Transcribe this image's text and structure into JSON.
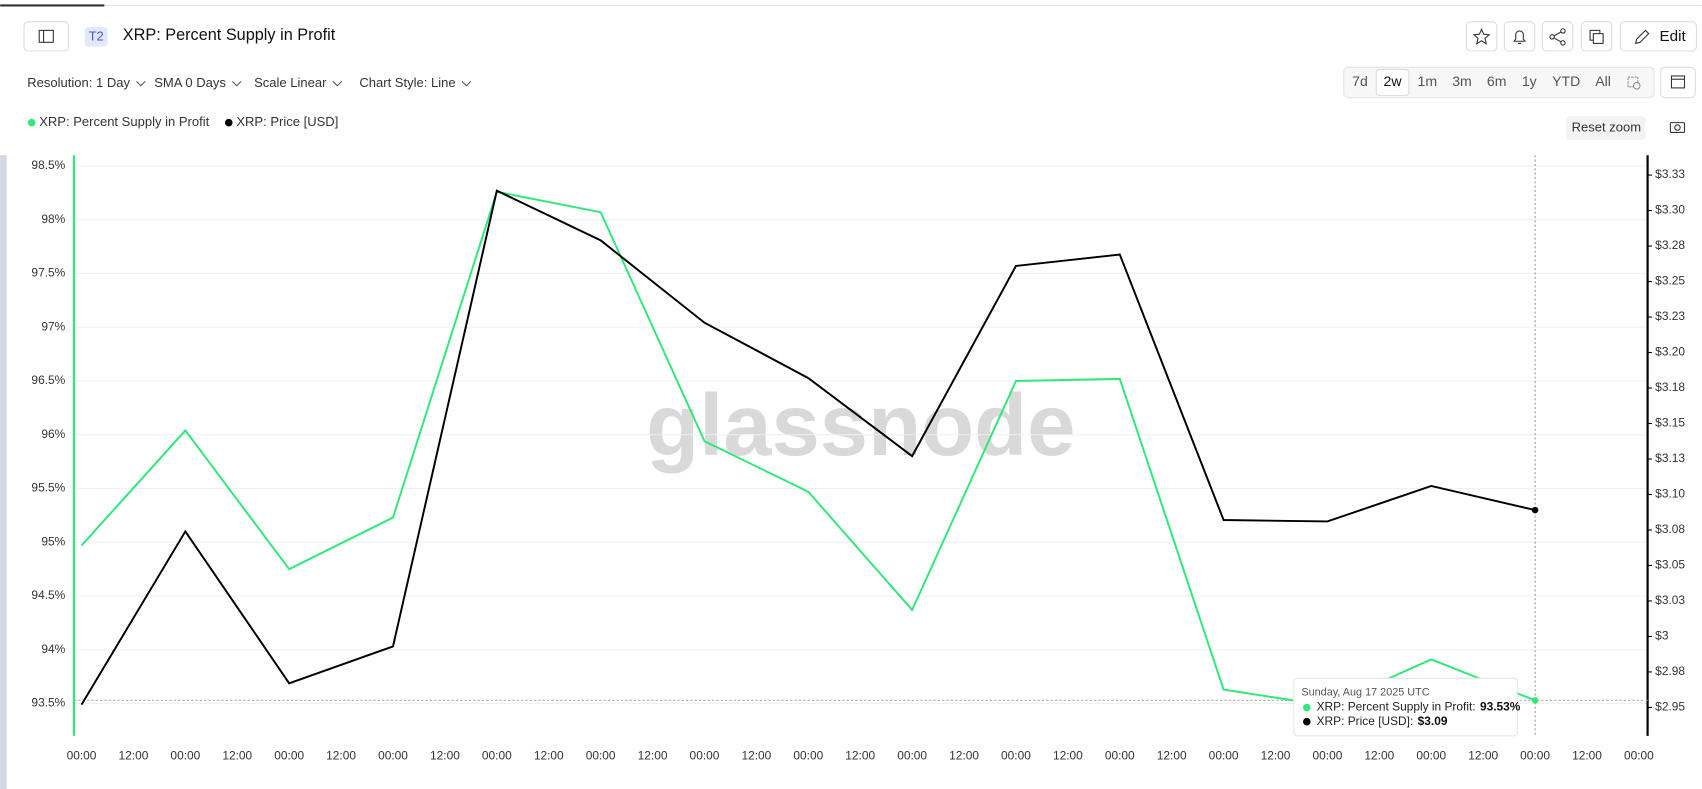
{
  "header": {
    "badge": "T2",
    "title": "XRP: Percent Supply in Profit",
    "edit": "Edit"
  },
  "controls": [
    "Resolution: 1 Day",
    "SMA 0 Days",
    "Scale Linear",
    "Chart Style: Line"
  ],
  "ranges": [
    "7d",
    "2w",
    "1m",
    "3m",
    "6m",
    "1y",
    "YTD",
    "All"
  ],
  "active_range": 1,
  "reset_zoom": "Reset zoom",
  "chart_data": {
    "type": "line",
    "watermark": "glassnode",
    "x_labels": [
      "00:00",
      "12:00",
      "00:00",
      "12:00",
      "00:00",
      "12:00",
      "00:00",
      "12:00",
      "00:00",
      "12:00",
      "00:00",
      "12:00",
      "00:00",
      "12:00",
      "00:00",
      "12:00",
      "00:00",
      "12:00",
      "00:00",
      "12:00",
      "00:00",
      "12:00",
      "00:00",
      "12:00",
      "00:00",
      "12:00",
      "00:00",
      "12:00",
      "00:00",
      "12:00",
      "00:00"
    ],
    "series": [
      {
        "name": "XRP: Percent Supply in Profit",
        "color": "#2ee87a",
        "axis": "y",
        "values": [
          94.97,
          96.04,
          94.75,
          95.23,
          98.26,
          98.07,
          95.94,
          95.47,
          94.37,
          96.5,
          96.52,
          93.63,
          93.48,
          93.91,
          93.53
        ]
      },
      {
        "name": "XRP: Price [USD]",
        "color": "#000000",
        "axis": "y2",
        "values": [
          2.952,
          3.074,
          2.967,
          2.993,
          3.314,
          3.279,
          3.221,
          3.182,
          3.127,
          3.261,
          3.269,
          3.082,
          3.081,
          3.106,
          3.089
        ]
      }
    ],
    "ylim": [
      93.2,
      98.6
    ],
    "yticks": [
      {
        "value": 93.5,
        "label": "93.5%"
      },
      {
        "value": 94,
        "label": "94%"
      },
      {
        "value": 94.5,
        "label": "94.5%"
      },
      {
        "value": 95,
        "label": "95%"
      },
      {
        "value": 95.5,
        "label": "95.5%"
      },
      {
        "value": 96,
        "label": "96%"
      },
      {
        "value": 96.5,
        "label": "96.5%"
      },
      {
        "value": 97,
        "label": "97%"
      },
      {
        "value": 97.5,
        "label": "97.5%"
      },
      {
        "value": 98,
        "label": "98%"
      },
      {
        "value": 98.5,
        "label": "98.5%"
      }
    ],
    "y2lim": [
      2.93,
      3.339
    ],
    "y2ticks": [
      {
        "value": 2.95,
        "label": "$2.95"
      },
      {
        "value": 2.975,
        "label": "$2.98"
      },
      {
        "value": 3.0,
        "label": "$3"
      },
      {
        "value": 3.025,
        "label": "$3.03"
      },
      {
        "value": 3.05,
        "label": "$3.05"
      },
      {
        "value": 3.075,
        "label": "$3.08"
      },
      {
        "value": 3.1,
        "label": "$3.10"
      },
      {
        "value": 3.125,
        "label": "$3.13"
      },
      {
        "value": 3.15,
        "label": "$3.15"
      },
      {
        "value": 3.175,
        "label": "$3.18"
      },
      {
        "value": 3.2,
        "label": "$3.20"
      },
      {
        "value": 3.225,
        "label": "$3.23"
      },
      {
        "value": 3.25,
        "label": "$3.25"
      },
      {
        "value": 3.275,
        "label": "$3.28"
      },
      {
        "value": 3.3,
        "label": "$3.30"
      },
      {
        "value": 3.325,
        "label": "$3.33"
      }
    ],
    "grid": true,
    "tooltip": {
      "date": "Sunday, Aug 17 2025 UTC",
      "rows": [
        {
          "name": "XRP: Percent Supply in Profit:",
          "value": "93.53%"
        },
        {
          "name": "XRP: Price [USD]:",
          "value": "$3.09"
        }
      ]
    }
  }
}
